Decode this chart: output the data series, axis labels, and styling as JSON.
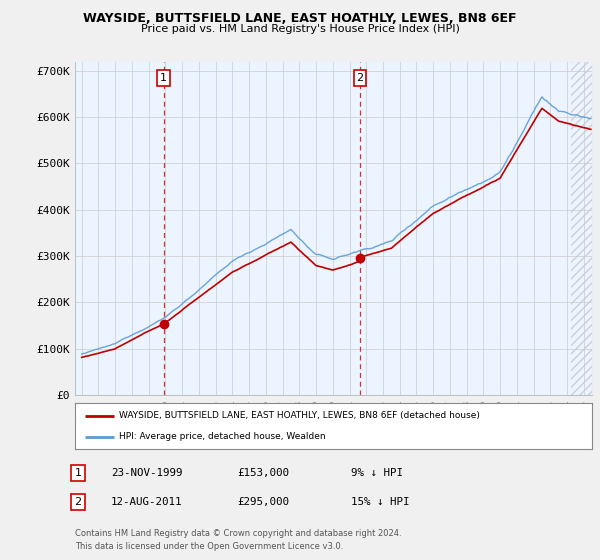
{
  "title": "WAYSIDE, BUTTSFIELD LANE, EAST HOATHLY, LEWES, BN8 6EF",
  "subtitle": "Price paid vs. HM Land Registry's House Price Index (HPI)",
  "ylim": [
    0,
    720000
  ],
  "yticks": [
    0,
    100000,
    200000,
    300000,
    400000,
    500000,
    600000,
    700000
  ],
  "ytick_labels": [
    "£0",
    "£100K",
    "£200K",
    "£300K",
    "£400K",
    "£500K",
    "£600K",
    "£700K"
  ],
  "hpi_color": "#5b9bd5",
  "price_color": "#c00000",
  "marker_color": "#c00000",
  "vline_color": "#cc0000",
  "bg_fill_color": "#ddeeff",
  "sale1_date": 1999.89,
  "sale1_price": 153000,
  "sale2_date": 2011.62,
  "sale2_price": 295000,
  "hatch_start": 2024.25,
  "xlim_left": 1994.6,
  "xlim_right": 2025.5,
  "legend_property": "WAYSIDE, BUTTSFIELD LANE, EAST HOATHLY, LEWES, BN8 6EF (detached house)",
  "legend_hpi": "HPI: Average price, detached house, Wealden",
  "footnote1": "Contains HM Land Registry data © Crown copyright and database right 2024.",
  "footnote2": "This data is licensed under the Open Government Licence v3.0.",
  "table_rows": [
    {
      "num": "1",
      "date": "23-NOV-1999",
      "price": "£153,000",
      "hpi": "9% ↓ HPI"
    },
    {
      "num": "2",
      "date": "12-AUG-2011",
      "price": "£295,000",
      "hpi": "15% ↓ HPI"
    }
  ],
  "background_color": "#f0f0f0",
  "plot_bg_color": "#ffffff",
  "grid_color": "#cccccc"
}
